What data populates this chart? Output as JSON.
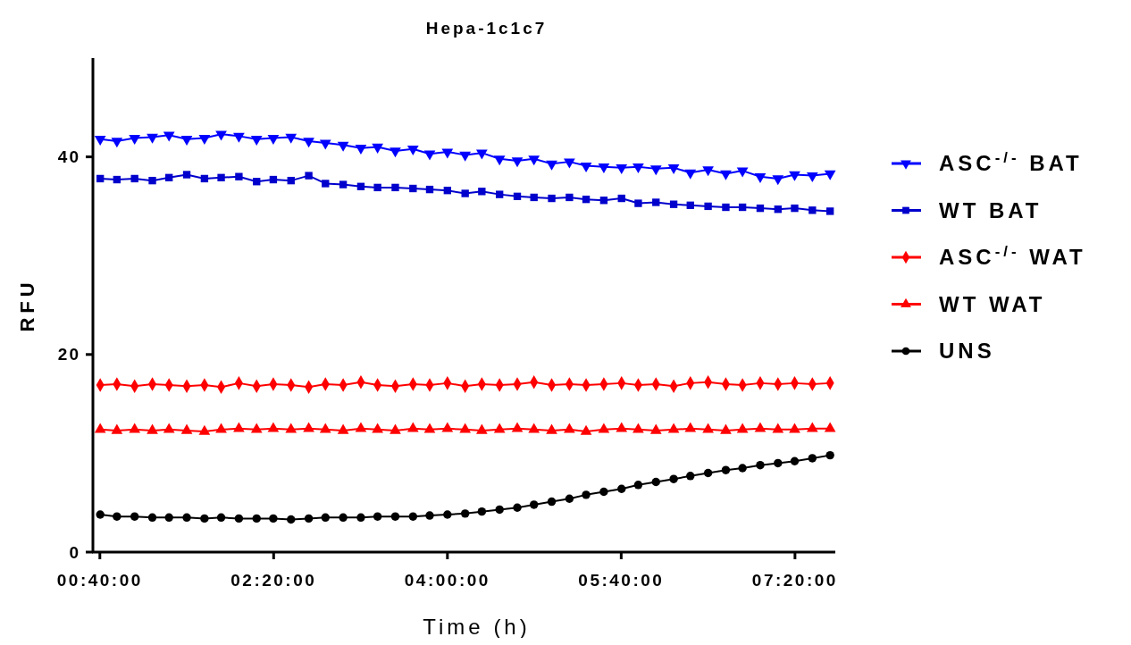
{
  "chart_data": {
    "type": "line",
    "title": "Hepa-1c1c7",
    "xlabel": "Time (h)",
    "ylabel": "RFU",
    "legend": "right",
    "grid": false,
    "x": [
      0.67,
      0.83,
      1.0,
      1.17,
      1.33,
      1.5,
      1.67,
      1.83,
      2.0,
      2.17,
      2.33,
      2.5,
      2.67,
      2.83,
      3.0,
      3.17,
      3.33,
      3.5,
      3.67,
      3.83,
      4.0,
      4.17,
      4.33,
      4.5,
      4.67,
      4.83,
      5.0,
      5.17,
      5.33,
      5.5,
      5.67,
      5.83,
      6.0,
      6.17,
      6.33,
      6.5,
      6.67,
      6.83,
      7.0,
      7.17,
      7.33,
      7.5,
      7.67
    ],
    "xlim": [
      0.6,
      7.72
    ],
    "xticks": [
      {
        "value": 0.6667,
        "label": "00:40:00"
      },
      {
        "value": 2.3333,
        "label": "02:20:00"
      },
      {
        "value": 4,
        "label": "04:00:00"
      },
      {
        "value": 5.6667,
        "label": "05:40:00"
      },
      {
        "value": 7.3333,
        "label": "07:20:00"
      }
    ],
    "ylim": [
      0,
      50
    ],
    "yticks": [
      0,
      20,
      40
    ],
    "series": [
      {
        "name": "ASC$^{-/-}$ BAT",
        "color": "#0000ff",
        "marker": "triangle-down",
        "values": [
          41.8,
          41.6,
          41.9,
          42.0,
          42.2,
          41.8,
          41.9,
          42.3,
          42.1,
          41.8,
          41.9,
          42.0,
          41.6,
          41.4,
          41.2,
          40.9,
          41.0,
          40.6,
          40.8,
          40.3,
          40.5,
          40.2,
          40.4,
          39.8,
          39.6,
          39.8,
          39.3,
          39.5,
          39.1,
          39.0,
          38.9,
          39.0,
          38.8,
          38.9,
          38.4,
          38.7,
          38.3,
          38.6,
          38.0,
          37.8,
          38.2,
          38.1,
          38.3
        ]
      },
      {
        "name": "WT BAT",
        "color": "#0000cc",
        "marker": "square",
        "values": [
          37.8,
          37.7,
          37.8,
          37.6,
          37.9,
          38.2,
          37.8,
          37.9,
          38.0,
          37.5,
          37.7,
          37.6,
          38.1,
          37.3,
          37.2,
          37.0,
          36.9,
          36.9,
          36.8,
          36.7,
          36.6,
          36.3,
          36.5,
          36.2,
          36.0,
          35.9,
          35.8,
          35.9,
          35.7,
          35.6,
          35.8,
          35.3,
          35.4,
          35.2,
          35.1,
          35.0,
          34.9,
          34.9,
          34.8,
          34.7,
          34.8,
          34.6,
          34.5
        ]
      },
      {
        "name": "ASC$^{-/-}$ WAT",
        "color": "#ff0000",
        "marker": "diamond",
        "values": [
          16.9,
          17.0,
          16.8,
          17.0,
          16.9,
          16.8,
          16.9,
          16.7,
          17.1,
          16.8,
          17.0,
          16.9,
          16.7,
          17.0,
          16.9,
          17.2,
          16.9,
          16.8,
          17.0,
          16.9,
          17.1,
          16.8,
          17.0,
          16.9,
          17.0,
          17.2,
          16.9,
          17.0,
          16.9,
          17.0,
          17.1,
          16.9,
          17.0,
          16.8,
          17.1,
          17.2,
          17.0,
          16.9,
          17.1,
          17.0,
          17.1,
          17.0,
          17.1
        ]
      },
      {
        "name": "WT WAT",
        "color": "#ff0000",
        "marker": "triangle",
        "values": [
          12.4,
          12.3,
          12.4,
          12.3,
          12.4,
          12.3,
          12.2,
          12.4,
          12.5,
          12.4,
          12.5,
          12.4,
          12.5,
          12.4,
          12.3,
          12.5,
          12.4,
          12.3,
          12.5,
          12.4,
          12.5,
          12.4,
          12.3,
          12.4,
          12.5,
          12.4,
          12.3,
          12.4,
          12.2,
          12.4,
          12.5,
          12.4,
          12.3,
          12.4,
          12.5,
          12.4,
          12.3,
          12.4,
          12.5,
          12.4,
          12.4,
          12.5,
          12.5
        ]
      },
      {
        "name": "UNS",
        "color": "#000000",
        "marker": "circle",
        "values": [
          3.8,
          3.6,
          3.6,
          3.5,
          3.5,
          3.5,
          3.4,
          3.5,
          3.4,
          3.4,
          3.4,
          3.3,
          3.4,
          3.5,
          3.5,
          3.5,
          3.6,
          3.6,
          3.6,
          3.7,
          3.8,
          3.9,
          4.1,
          4.3,
          4.5,
          4.8,
          5.1,
          5.4,
          5.8,
          6.1,
          6.4,
          6.8,
          7.1,
          7.4,
          7.7,
          8.0,
          8.3,
          8.5,
          8.8,
          9.0,
          9.2,
          9.5,
          9.8
        ]
      }
    ]
  }
}
